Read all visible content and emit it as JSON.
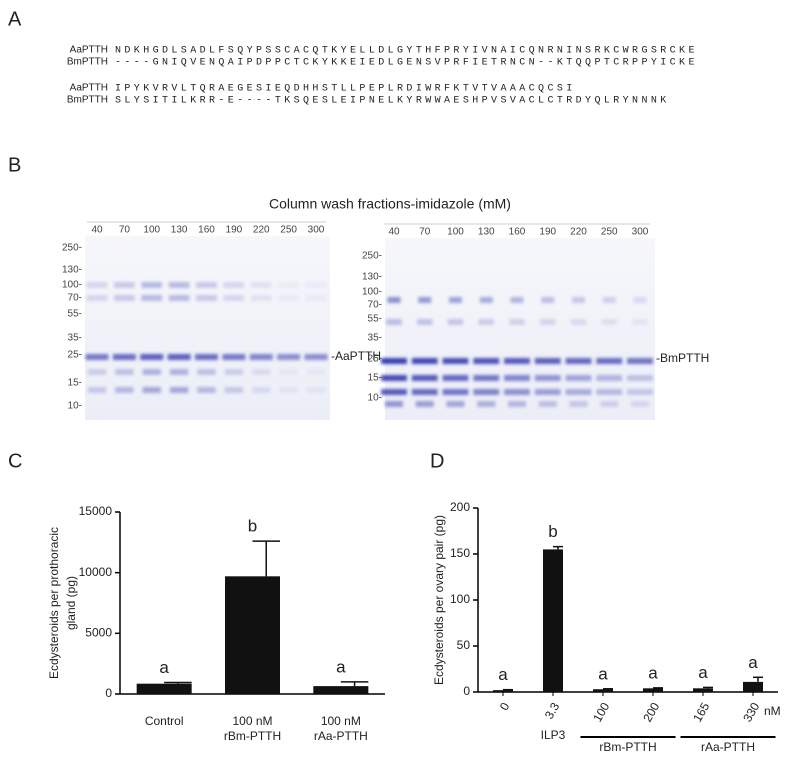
{
  "panel_a": {
    "label": "A",
    "alignment": [
      [
        {
          "name": "AaPTTH",
          "sequence": "NDKHGDLSADLFSQYPSSCACQTKYELLDLGYTHFPRYIVNAICQNRNINSRKCWRGSRCKE"
        },
        {
          "name": "BmPTTH",
          "sequence": "----GNIQVENQAIPDPPCTCKYKKEIEDLGENSVPRFIETRNCN--KTQQPTCRPPYICKE"
        }
      ],
      [
        {
          "name": "AaPTTH",
          "sequence": "IPYKVRVLTQRAEGESIEQDHHSTLLPEPLRDIWRFKTVTVAAACQCSI"
        },
        {
          "name": "BmPTTH",
          "sequence": "SLYSITILKRR-E----TKSQESLEIPNELKYRWWAESHPVSVACLCTRDYQLRYNNNK"
        }
      ]
    ]
  },
  "panel_b": {
    "label": "B",
    "title": "Column wash fractions-imidazole (mM)",
    "gels": [
      {
        "lanes": [
          40,
          70,
          100,
          130,
          160,
          190,
          220,
          250,
          300
        ],
        "markers": [
          "250-",
          "130-",
          "100-",
          "70-",
          "55-",
          "35-",
          "25-",
          "15-",
          "10-"
        ],
        "protein": "-AaPTTH"
      },
      {
        "lanes": [
          40,
          70,
          100,
          130,
          160,
          190,
          220,
          250,
          300
        ],
        "markers": [
          "250-",
          "130-",
          "100-",
          "70-",
          "55-",
          "35-",
          "25-",
          "15-",
          "10-"
        ],
        "protein": "-BmPTTH"
      }
    ]
  },
  "chart_data": [
    {
      "type": "bar",
      "panel_label": "C",
      "ylabel": [
        "Ecdysteroids per prothoracic",
        "gland (pg)"
      ],
      "categories": [
        [
          "Control"
        ],
        [
          "100 nM",
          "rBm-PTTH"
        ],
        [
          "100 nM",
          "rAa-PTTH"
        ]
      ],
      "values": [
        850,
        9700,
        650
      ],
      "errors": [
        100,
        2900,
        350
      ],
      "letters": [
        "a",
        "b",
        "a"
      ],
      "color": "#111111",
      "ylim": [
        0,
        15000
      ],
      "yticks": [
        0,
        5000,
        10000,
        15000
      ]
    },
    {
      "type": "bar",
      "panel_label": "D",
      "ylabel": [
        "Ecdysteroids per ovary pair (pg)"
      ],
      "categories": [
        [
          "0"
        ],
        [
          "3.3"
        ],
        [
          "100"
        ],
        [
          "200"
        ],
        [
          "165"
        ],
        [
          "330"
        ]
      ],
      "unit": "nM",
      "groups": [
        "ILP3",
        "rBm-PTTH",
        "rAa-PTTH"
      ],
      "values": [
        2,
        155,
        3,
        4,
        4,
        11
      ],
      "errors": [
        0.5,
        3,
        0.5,
        0.5,
        1,
        5
      ],
      "letters": [
        "a",
        "b",
        "a",
        "a",
        "a",
        "a"
      ],
      "color": "#111111",
      "ylim": [
        0,
        200
      ],
      "yticks": [
        0,
        50,
        100,
        150,
        200
      ]
    }
  ]
}
